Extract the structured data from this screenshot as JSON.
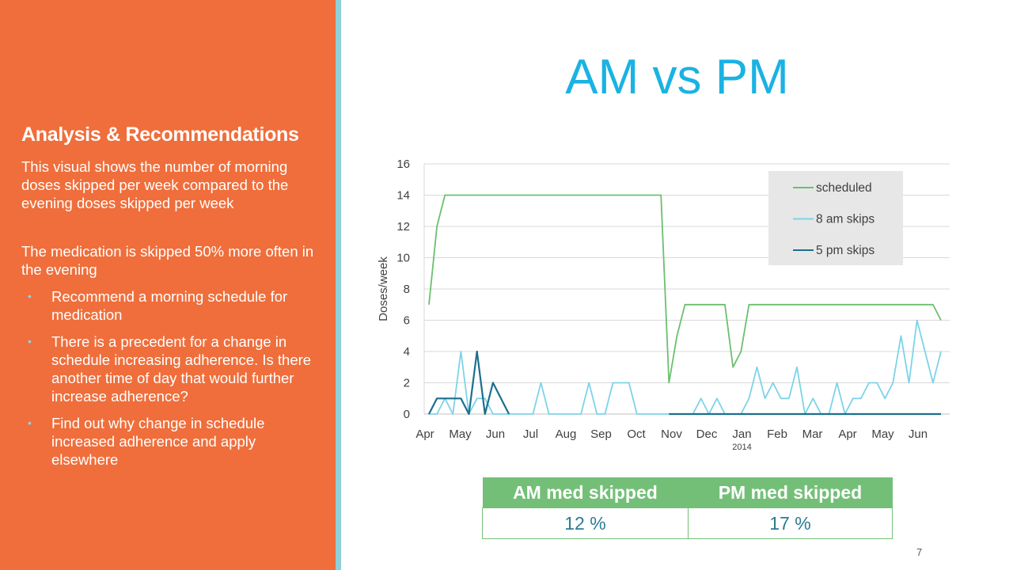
{
  "sidebar": {
    "heading": "Analysis & Recommendations",
    "para1": "This visual shows the number of morning doses skipped per week compared to the evening doses skipped per week",
    "para2": "The medication is skipped 50% more often in the evening",
    "bullets": [
      "Recommend a morning schedule for medication",
      "There is a precedent for a change in schedule increasing adherence. Is there another time of day that would further increase adherence?",
      "Find out why change in schedule increased adherence and apply elsewhere"
    ]
  },
  "title": "AM vs PM",
  "chart_data": {
    "type": "line",
    "ylabel": "Doses/week",
    "xlabel": "",
    "ylim": [
      0,
      16
    ],
    "yticks": [
      0,
      2,
      4,
      6,
      8,
      10,
      12,
      14,
      16
    ],
    "grid": true,
    "legend_position": "top-right",
    "x_tick_labels": [
      "Apr",
      "May",
      "Jun",
      "Jul",
      "Aug",
      "Sep",
      "Oct",
      "Nov",
      "Dec",
      "Jan",
      "Feb",
      "Mar",
      "Apr",
      "May",
      "Jun"
    ],
    "x_sub_label": {
      "under": "Jan",
      "text": "2014"
    },
    "weeks": 65,
    "series": [
      {
        "name": "scheduled",
        "color": "#6cbf6f",
        "values": [
          7,
          12,
          14,
          14,
          14,
          14,
          14,
          14,
          14,
          14,
          14,
          14,
          14,
          14,
          14,
          14,
          14,
          14,
          14,
          14,
          14,
          14,
          14,
          14,
          14,
          14,
          14,
          14,
          14,
          14,
          2,
          5,
          7,
          7,
          7,
          7,
          7,
          7,
          3,
          4,
          7,
          7,
          7,
          7,
          7,
          7,
          7,
          7,
          7,
          7,
          7,
          7,
          7,
          7,
          7,
          7,
          7,
          7,
          7,
          7,
          7,
          7,
          7,
          7,
          6
        ]
      },
      {
        "name": "8 am skips",
        "color": "#7dd3e8",
        "values": [
          0,
          0,
          1,
          0,
          4,
          0,
          1,
          1,
          0,
          0,
          0,
          0,
          0,
          0,
          2,
          0,
          0,
          0,
          0,
          0,
          2,
          0,
          0,
          2,
          2,
          2,
          0,
          0,
          0,
          0,
          0,
          0,
          0,
          0,
          1,
          0,
          1,
          0,
          0,
          0,
          1,
          3,
          1,
          2,
          1,
          1,
          3,
          0,
          1,
          0,
          0,
          2,
          0,
          1,
          1,
          2,
          2,
          1,
          2,
          5,
          2,
          6,
          4,
          2,
          4
        ]
      },
      {
        "name": "5 pm skips",
        "color": "#1b6f8c",
        "values": [
          0,
          1,
          1,
          1,
          1,
          0,
          4,
          0,
          2,
          1,
          0,
          null,
          null,
          null,
          null,
          null,
          null,
          null,
          null,
          null,
          null,
          null,
          null,
          null,
          null,
          null,
          null,
          null,
          null,
          null,
          0,
          0,
          0,
          0,
          0,
          0,
          0,
          0,
          0,
          0,
          0,
          0,
          0,
          0,
          0,
          0,
          0,
          0,
          0,
          0,
          0,
          0,
          0,
          0,
          0,
          0,
          0,
          0,
          0,
          0,
          0,
          0,
          0,
          0,
          0
        ]
      }
    ]
  },
  "summary_table": {
    "headers": [
      "AM med skipped",
      "PM med skipped"
    ],
    "values": [
      "12 %",
      "17 %"
    ]
  },
  "page_number": "7"
}
